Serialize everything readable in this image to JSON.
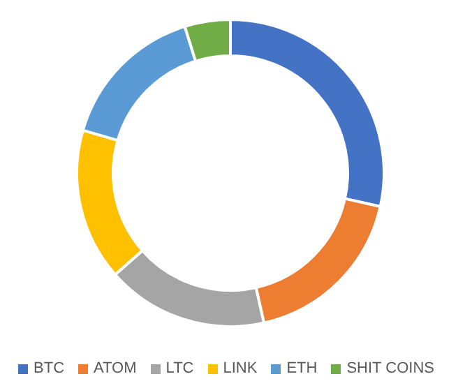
{
  "chart_data": {
    "type": "donut",
    "categories": [
      "BTC",
      "ATOM",
      "LTC",
      "LINK",
      "ETH",
      "SHIT COINS"
    ],
    "values": [
      28.5,
      18,
      17,
      16,
      15.7,
      4.8
    ],
    "colors": [
      "#4472c4",
      "#ed7d31",
      "#a5a5a5",
      "#ffc000",
      "#5b9bd5",
      "#70ad47"
    ],
    "legend": "bottom"
  }
}
